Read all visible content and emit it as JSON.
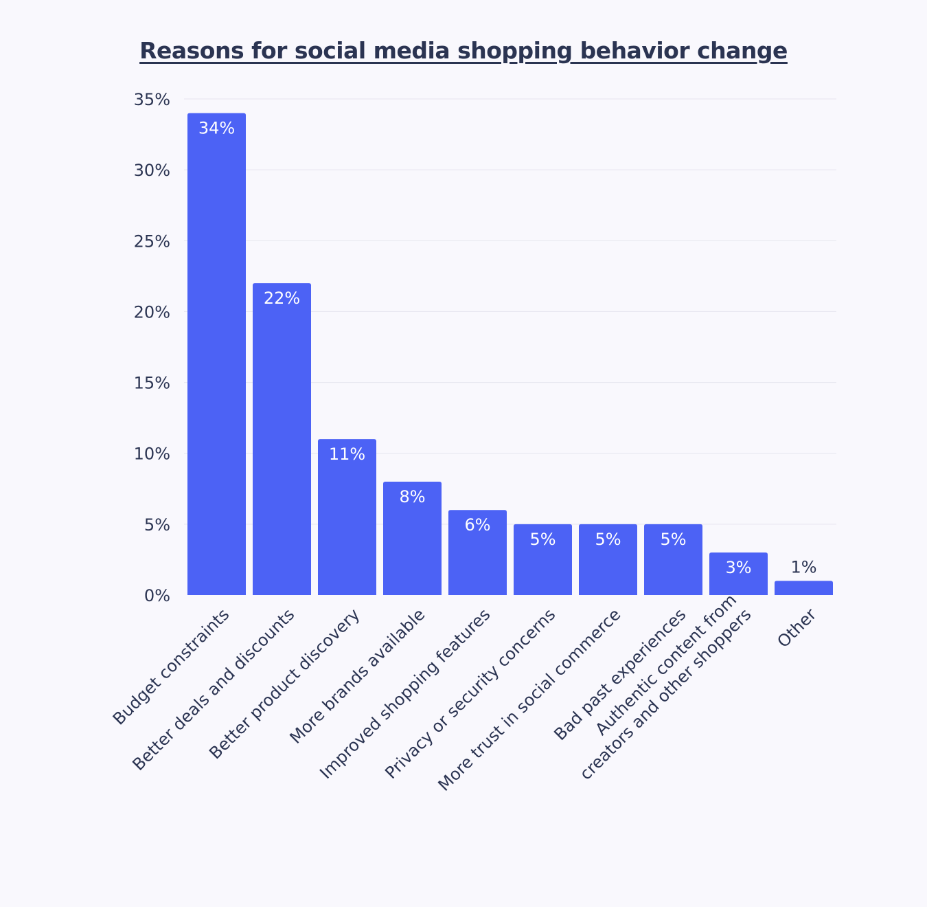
{
  "chart_data": {
    "type": "bar",
    "title": "Reasons for social media shopping behavior change",
    "xlabel": "",
    "ylabel": "",
    "ylim": [
      0,
      35
    ],
    "yticks": [
      0,
      5,
      10,
      15,
      20,
      25,
      30,
      35
    ],
    "ytick_labels": [
      "0%",
      "5%",
      "10%",
      "15%",
      "20%",
      "25%",
      "30%",
      "35%"
    ],
    "grid": true,
    "legend": "none",
    "categories": [
      [
        "Budget constraints"
      ],
      [
        "Better deals and discounts"
      ],
      [
        "Better product discovery"
      ],
      [
        "More brands available"
      ],
      [
        "Improved shopping features"
      ],
      [
        "Privacy or security concerns"
      ],
      [
        "More trust in social commerce"
      ],
      [
        "Bad past experiences"
      ],
      [
        "Authentic content from",
        "creators and other shoppers"
      ],
      [
        "Other"
      ]
    ],
    "values": [
      34,
      22,
      11,
      8,
      6,
      5,
      5,
      5,
      3,
      1
    ],
    "value_labels": [
      "34%",
      "22%",
      "11%",
      "8%",
      "6%",
      "5%",
      "5%",
      "5%",
      "3%",
      "1%"
    ],
    "colors": {
      "bar": "#4c62f5",
      "grid": "#e6e5ee",
      "text": "#2b3452",
      "value_label_inside": "#ffffff",
      "background": "#f9f8fd"
    }
  }
}
